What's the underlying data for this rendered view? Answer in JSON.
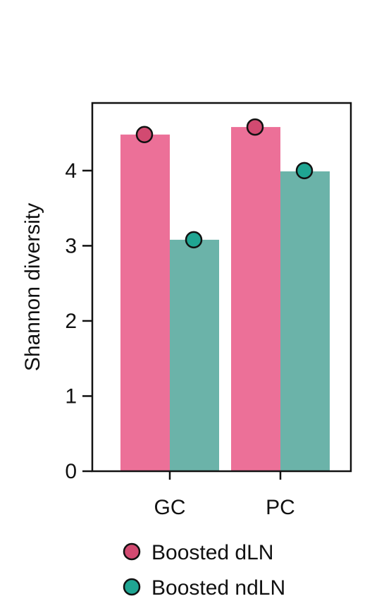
{
  "chart_data": {
    "type": "bar",
    "categories": [
      "GC",
      "PC"
    ],
    "series": [
      {
        "name": "Boosted dLN",
        "values": [
          4.48,
          4.58
        ],
        "points": [
          4.48,
          4.58
        ],
        "color": "#ec7098",
        "marker_color": "#d24a71"
      },
      {
        "name": "Boosted ndLN",
        "values": [
          3.08,
          3.99
        ],
        "points": [
          3.08,
          4.0
        ],
        "color": "#6bb3a9",
        "marker_color": "#1fa592"
      }
    ],
    "xlabel": "",
    "ylabel": "Shannon diversity",
    "ylim": [
      0,
      4.9
    ],
    "yticks": [
      "0",
      "1",
      "2",
      "3",
      "4"
    ],
    "grid": false,
    "legend_position": "bottom"
  }
}
